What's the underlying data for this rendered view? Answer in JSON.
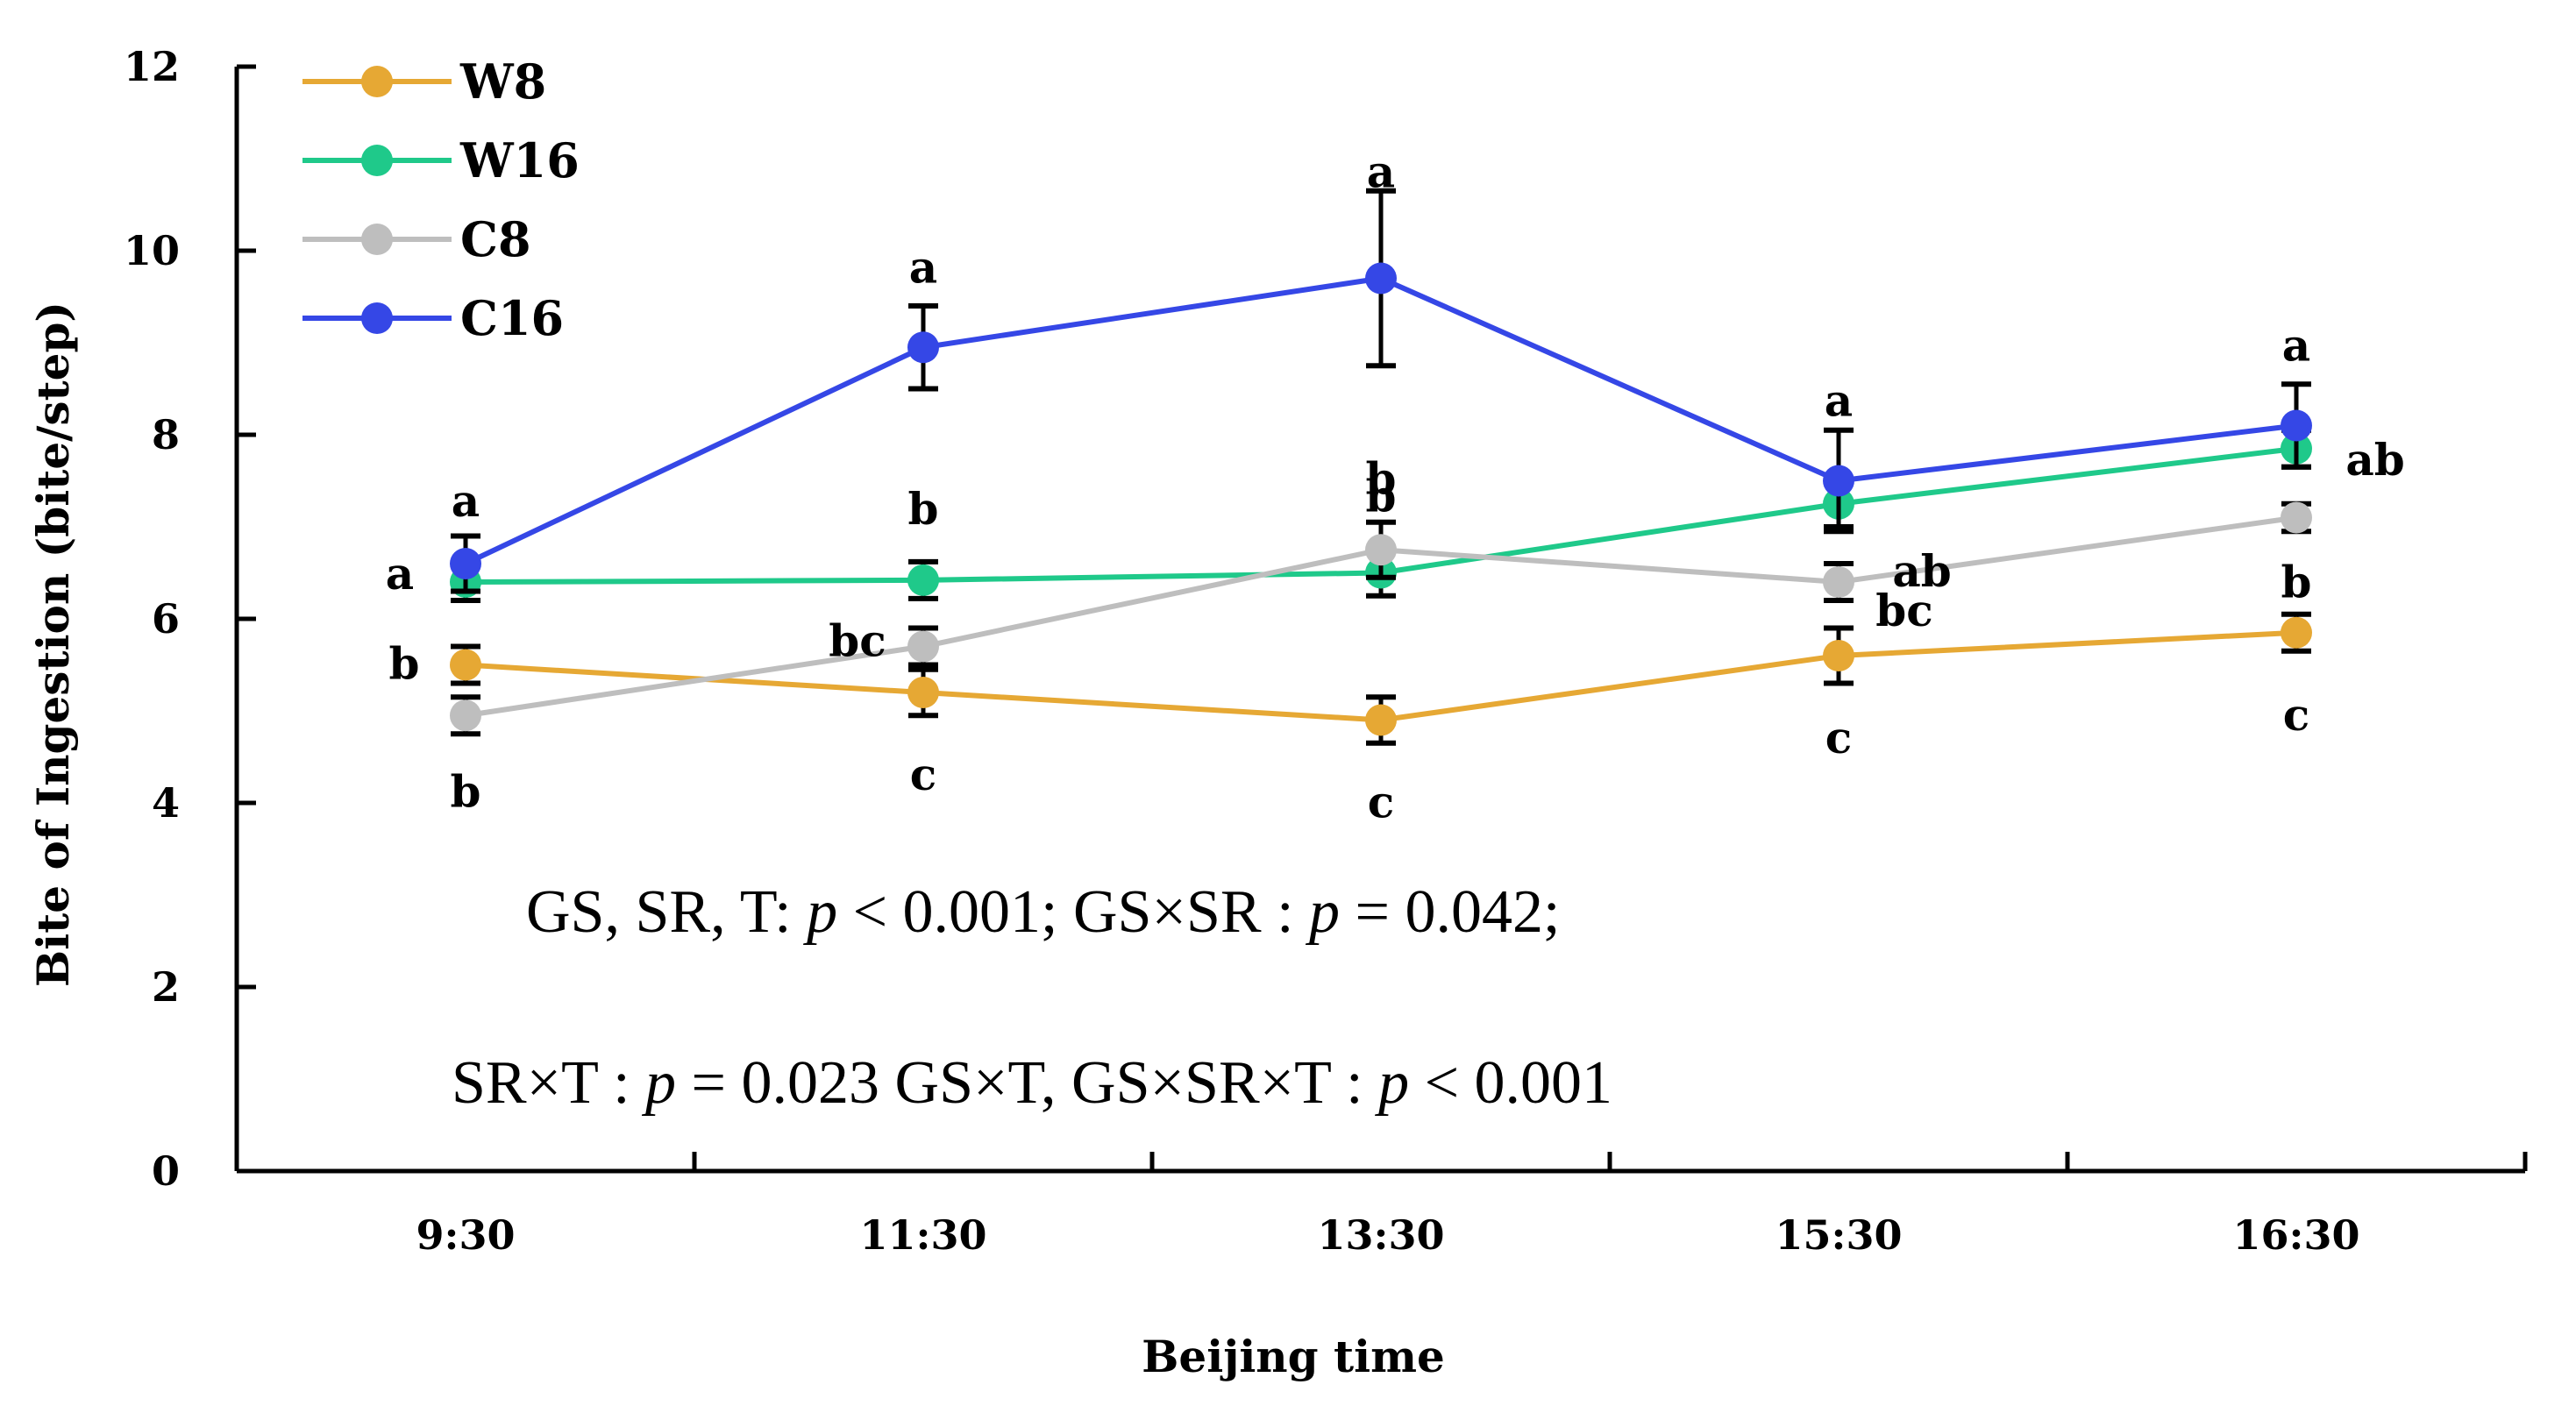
{
  "chart_data": {
    "type": "line",
    "title": "",
    "xlabel": "Beijing time",
    "ylabel": "Bite of Ingestion (bite/step)",
    "categories": [
      "9:30",
      "11:30",
      "13:30",
      "15:30",
      "16:30"
    ],
    "ylim": [
      0,
      12
    ],
    "yticks": [
      "0",
      "2",
      "4",
      "6",
      "8",
      "10",
      "12"
    ],
    "grid": false,
    "legend_position": "top-left",
    "series": [
      {
        "name": "W8",
        "color": "#E6A834",
        "values": [
          5.5,
          5.2,
          4.9,
          5.6,
          5.85
        ],
        "errors": [
          0.2,
          0.25,
          0.25,
          0.3,
          0.2
        ],
        "letters": [
          "b",
          "c",
          "c",
          "c",
          "c"
        ]
      },
      {
        "name": "W16",
        "color": "#1FC98A",
        "values": [
          6.4,
          6.42,
          6.5,
          7.25,
          7.85
        ],
        "errors": [
          0.2,
          0.2,
          0.25,
          0.25,
          0.2
        ],
        "letters": [
          "a",
          "b",
          "b",
          "ab",
          "ab"
        ]
      },
      {
        "name": "C8",
        "color": "#BEBEBE",
        "values": [
          4.95,
          5.7,
          6.75,
          6.4,
          7.1
        ],
        "errors": [
          0.2,
          0.2,
          0.3,
          0.2,
          0.15
        ],
        "letters": [
          "b",
          "bc",
          "b",
          "bc",
          "b"
        ]
      },
      {
        "name": "C16",
        "color": "#3547E6",
        "values": [
          6.6,
          8.95,
          9.7,
          7.5,
          8.1
        ],
        "errors": [
          0.3,
          0.45,
          0.95,
          0.55,
          0.45
        ],
        "letters": [
          "a",
          "a",
          "a",
          "a",
          "a"
        ]
      }
    ],
    "annotations": {
      "line1_prefix": "GS, SR, T: ",
      "line1_p1": "p",
      "line1_mid": " < 0.001;      GS×SR : ",
      "line1_p2": "p",
      "line1_end": " = 0.042;",
      "line2_prefix": "SR×T : ",
      "line2_p1": "p",
      "line2_mid": " = 0.023      GS×T, GS×SR×T : ",
      "line2_p2": "p",
      "line2_end": " < 0.001"
    }
  }
}
